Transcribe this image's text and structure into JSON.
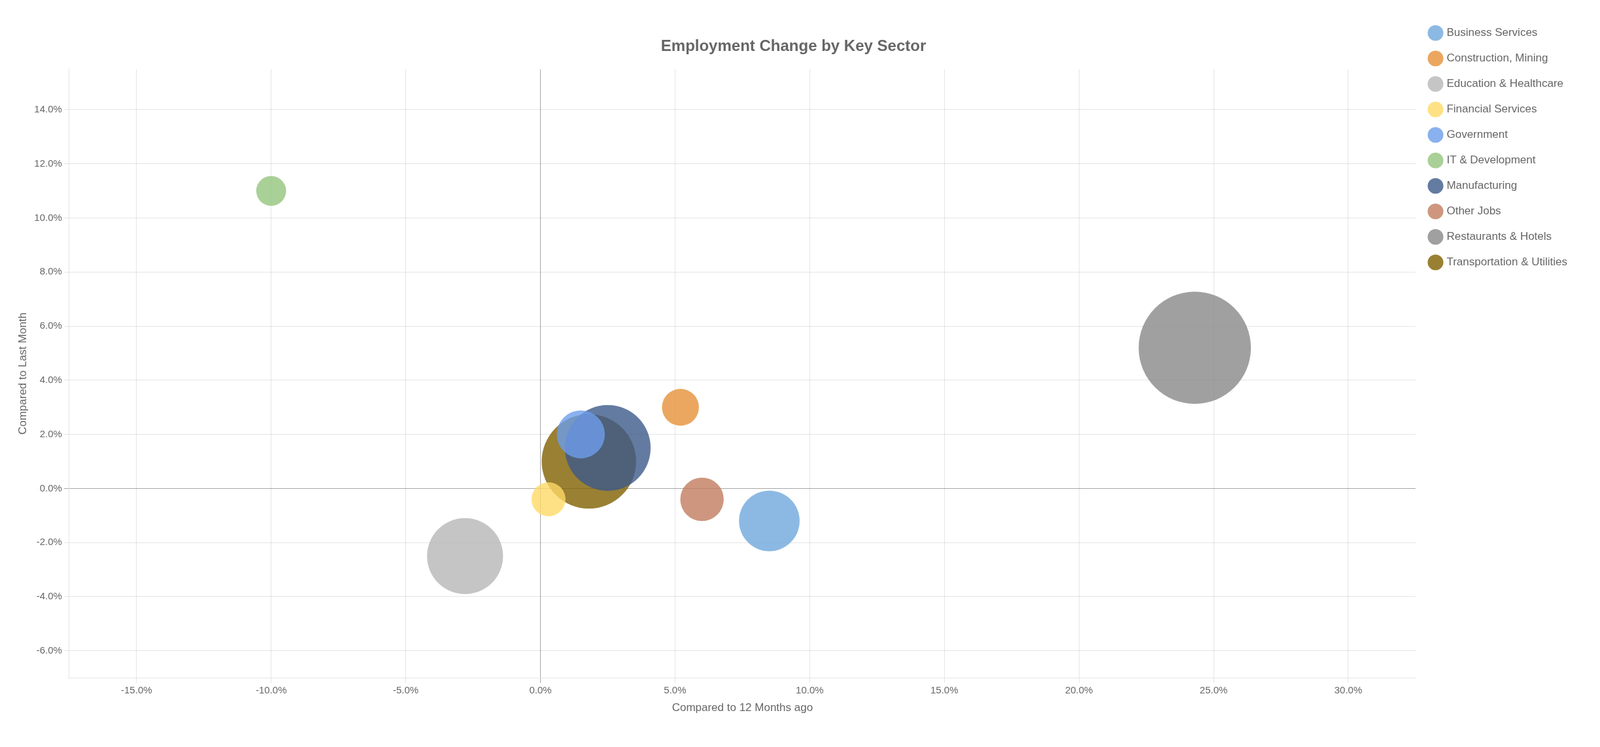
{
  "chart_data": {
    "type": "bubble",
    "title": "Employment Change by Key Sector",
    "xlabel": "Compared to 12 Months ago",
    "ylabel": "Compared to Last Month",
    "xlim": [
      -0.175,
      0.325
    ],
    "ylim": [
      -0.07,
      0.155
    ],
    "xticks": [
      {
        "value": -0.15,
        "label": "-15.0%"
      },
      {
        "value": -0.1,
        "label": "-10.0%"
      },
      {
        "value": -0.05,
        "label": "-5.0%"
      },
      {
        "value": 0.0,
        "label": "0.0%"
      },
      {
        "value": 0.05,
        "label": "5.0%"
      },
      {
        "value": 0.1,
        "label": "10.0%"
      },
      {
        "value": 0.15,
        "label": "15.0%"
      },
      {
        "value": 0.2,
        "label": "20.0%"
      },
      {
        "value": 0.25,
        "label": "25.0%"
      },
      {
        "value": 0.3,
        "label": "30.0%"
      }
    ],
    "yticks": [
      {
        "value": -0.06,
        "label": "-6.0%"
      },
      {
        "value": -0.04,
        "label": "-4.0%"
      },
      {
        "value": -0.02,
        "label": "-2.0%"
      },
      {
        "value": 0.0,
        "label": "0.0%"
      },
      {
        "value": 0.02,
        "label": "2.0%"
      },
      {
        "value": 0.04,
        "label": "4.0%"
      },
      {
        "value": 0.06,
        "label": "6.0%"
      },
      {
        "value": 0.08,
        "label": "8.0%"
      },
      {
        "value": 0.1,
        "label": "10.0%"
      },
      {
        "value": 0.12,
        "label": "12.0%"
      },
      {
        "value": 0.14,
        "label": "14.0%"
      }
    ],
    "grid": true,
    "legend": "right",
    "series": [
      {
        "name": "Business Services",
        "color": "#6fa8dc",
        "x": [
          0.085
        ],
        "values": [
          -0.012
        ],
        "size": [
          3500
        ]
      },
      {
        "name": "Construction, Mining",
        "color": "#e69138",
        "x": [
          0.052
        ],
        "values": [
          0.03
        ],
        "size": [
          1300
        ]
      },
      {
        "name": "Education & Healthcare",
        "color": "#b7b7b7",
        "x": [
          -0.028
        ],
        "values": [
          -0.025
        ],
        "size": [
          5500
        ]
      },
      {
        "name": "Financial Services",
        "color": "#ffd966",
        "x": [
          0.003
        ],
        "values": [
          -0.004
        ],
        "size": [
          1100
        ]
      },
      {
        "name": "Government",
        "color": "#6d9eeb",
        "x": [
          0.015
        ],
        "values": [
          0.02
        ],
        "size": [
          2200
        ]
      },
      {
        "name": "IT & Development",
        "color": "#93c47d",
        "x": [
          -0.1
        ],
        "values": [
          0.11
        ],
        "size": [
          850
        ]
      },
      {
        "name": "Manufacturing",
        "color": "#3d5a8a",
        "x": [
          0.025
        ],
        "values": [
          0.015
        ],
        "size": [
          7000
        ]
      },
      {
        "name": "Other Jobs",
        "color": "#c27c5e",
        "x": [
          0.06
        ],
        "values": [
          -0.004
        ],
        "size": [
          1800
        ]
      },
      {
        "name": "Restaurants & Hotels",
        "color": "#888888",
        "x": [
          0.243
        ],
        "values": [
          0.052
        ],
        "size": [
          12000
        ]
      },
      {
        "name": "Transportation & Utilities",
        "color": "#7f6000",
        "x": [
          0.018
        ],
        "values": [
          0.01
        ],
        "size": [
          8500
        ]
      }
    ]
  }
}
